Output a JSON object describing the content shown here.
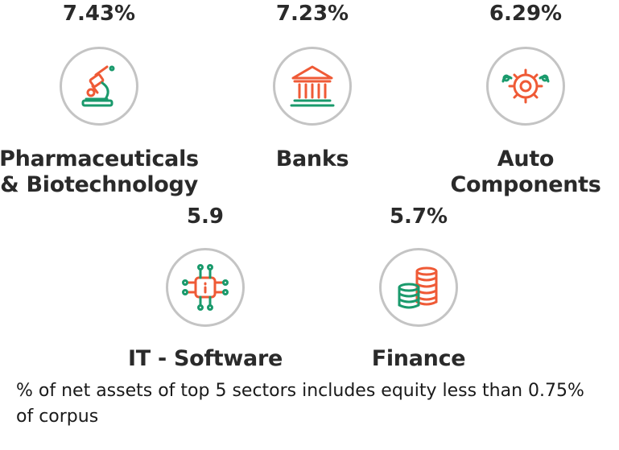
{
  "colors": {
    "green": "#1a9a6c",
    "orange": "#ef5a36",
    "ring": "#c4c4c4"
  },
  "sectors": [
    {
      "name": "Pharmaceuticals & Biotechnology",
      "line1": "Pharmaceuticals",
      "line2": "& Biotechnology",
      "percent": "7.43%",
      "icon": "microscope-icon"
    },
    {
      "name": "Banks",
      "line1": "Banks",
      "line2": "",
      "percent": "7.23%",
      "icon": "bank-icon"
    },
    {
      "name": "Auto Components",
      "line1": "Auto",
      "line2": "Components",
      "percent": "6.29%",
      "icon": "gears-icon"
    },
    {
      "name": "IT - Software",
      "line1": "IT - Software",
      "line2": "",
      "percent": "5.9",
      "icon": "chip-icon"
    },
    {
      "name": "Finance",
      "line1": "Finance",
      "line2": "",
      "percent": "5.7%",
      "icon": "coins-icon"
    }
  ],
  "footnote": "% of net assets of top 5 sectors includes equity less than 0.75% of corpus"
}
